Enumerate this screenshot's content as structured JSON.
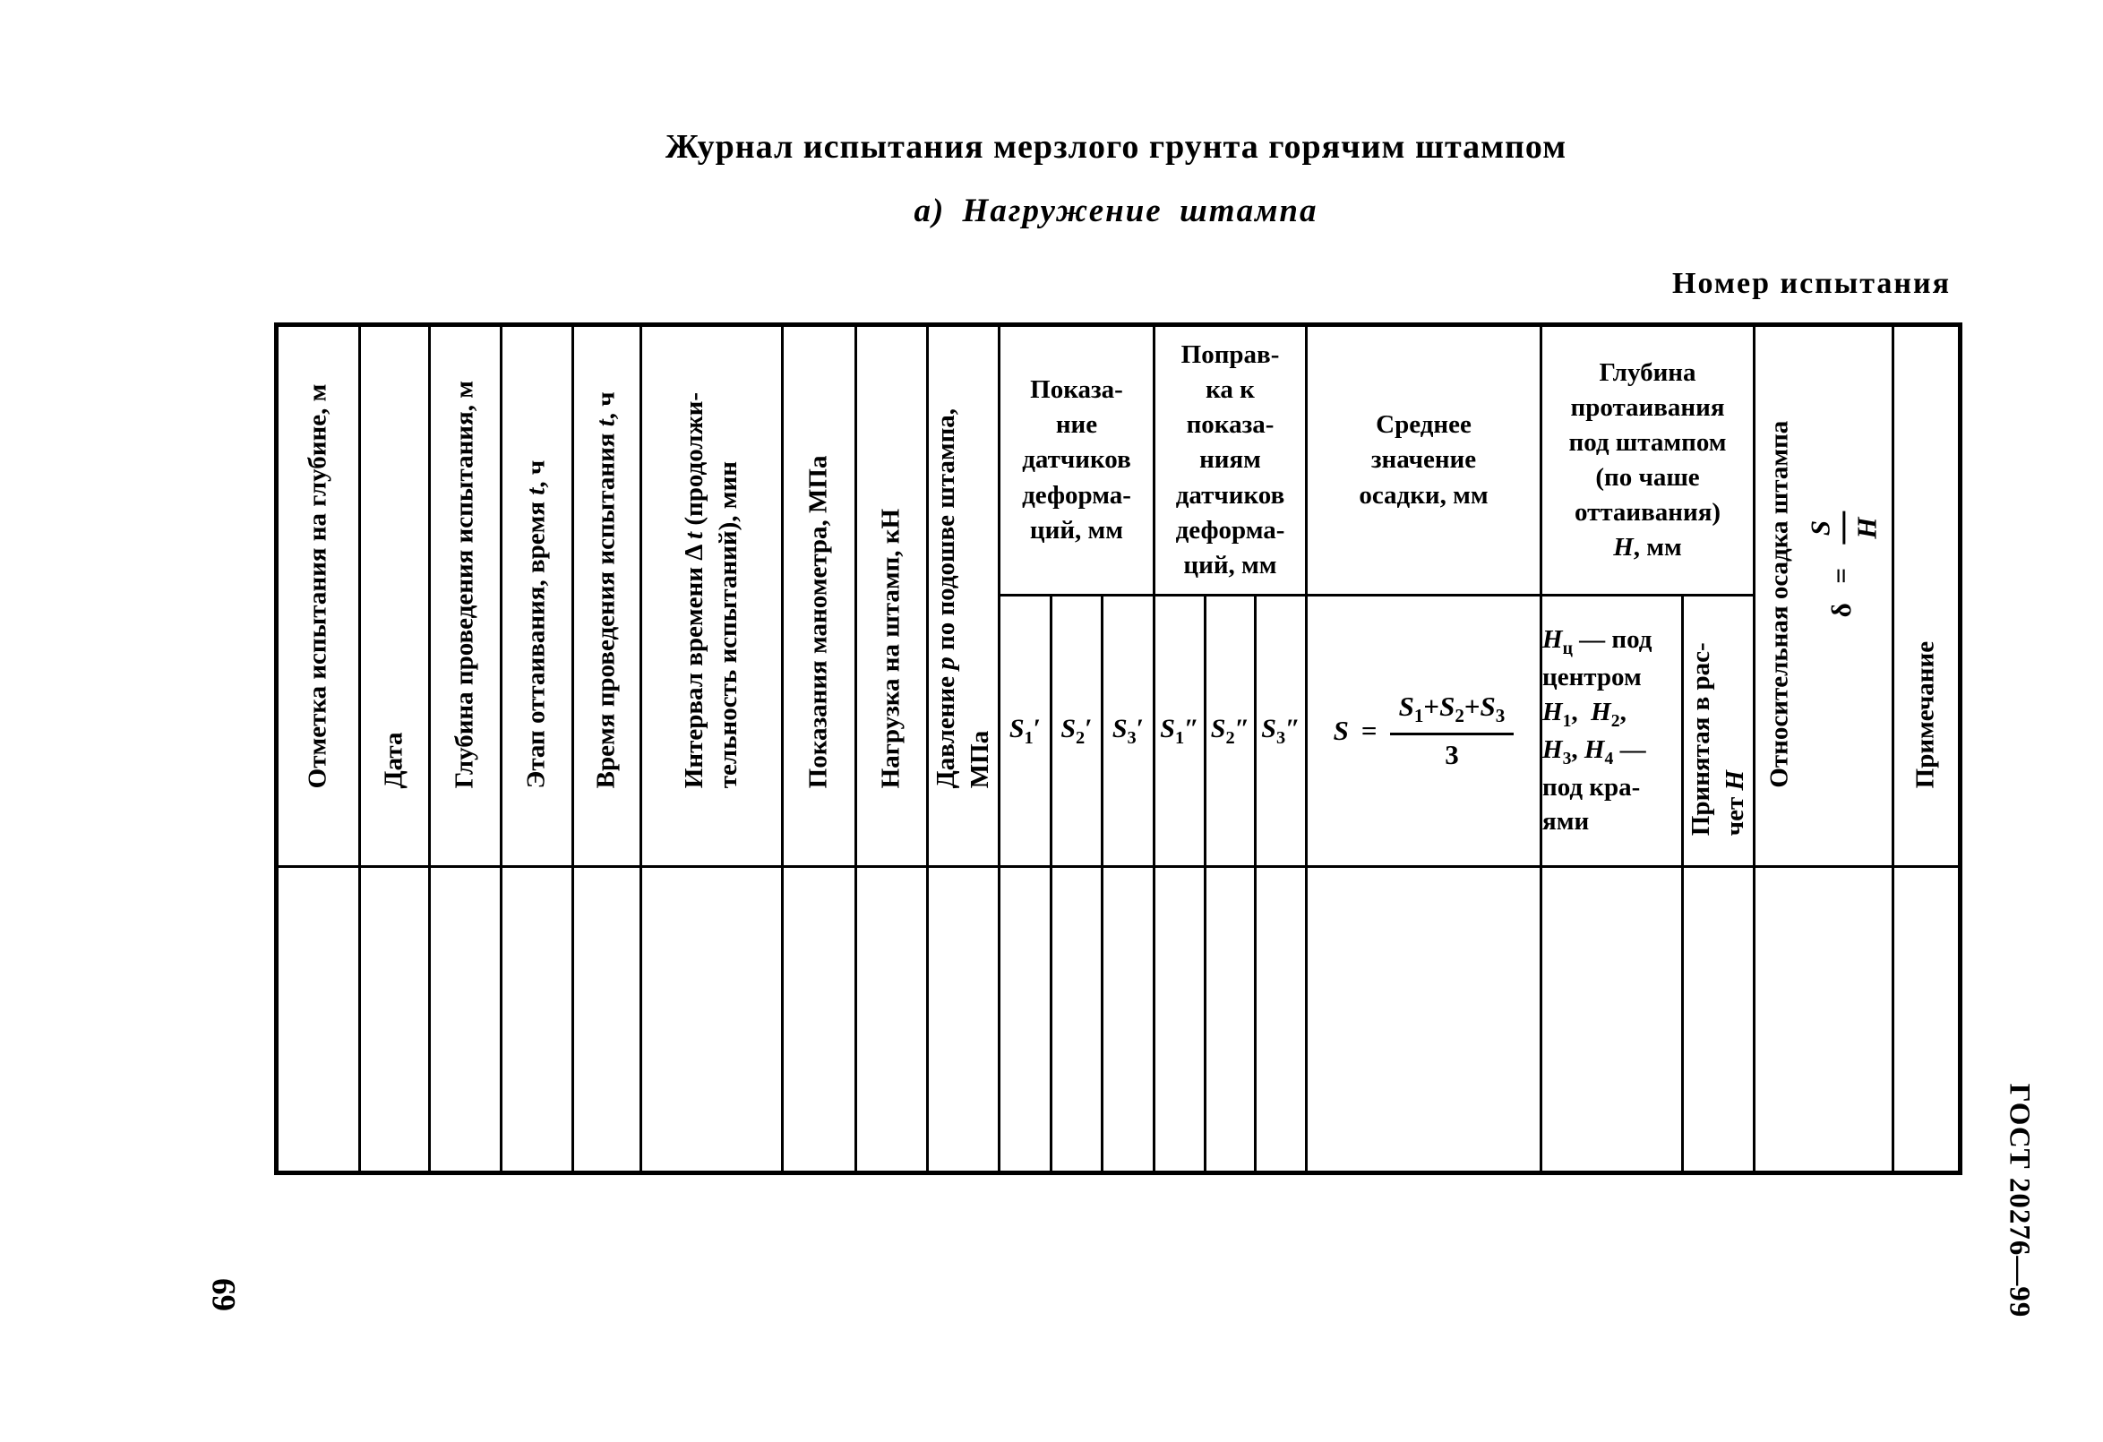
{
  "page": {
    "title": "Журнал испытания мерзлого грунта горячим штампом",
    "subtitle": "а) Нагружение штампа",
    "test_number_label": "Номер испытания",
    "page_number": "69",
    "standard_ref": "ГОСТ 20276—99"
  },
  "table": {
    "columns": {
      "mark": "Отметка испытания на глубине, м",
      "date": "Дата",
      "depth": "Глубина проведения испытания, м",
      "thaw_stage_html": "Этап оттаивания, время <i>t</i>, ч",
      "test_time_html": "Время проведения испытания <i>t</i>, ч",
      "interval_html": "Интервал времени Δ <i>t</i> (продолжи-<br>тельность испытаний), мин",
      "gauge": "Показания манометра, МПа",
      "load": "Нагрузка на штамп, кН",
      "pressure_html": "Давление <i>p</i> по подошве штампа,<br>МПа",
      "sensors_html": "Показа-<br>ние<br>датчиков<br>деформа-<br>ций, мм",
      "correction_html": "Поправ-<br>ка к<br>показа-<br>ниям<br>датчиков<br>деформа-<br>ций, мм",
      "mean_html": "Среднее<br>значение<br>осадки, мм",
      "thaw_depth_html": "Глубина<br>протаивания<br>под штампом<br>(по чаше<br>оттаивания)<br><i>H</i>, мм",
      "relative_settlement": "Относительная осадка штампа",
      "accepted_html": "Принятая в рас-<br>чет <i>H</i>",
      "note": "Примечание"
    },
    "subheaders": {
      "s_labels_html": [
        "<i>S</i><sub>1</sub>′",
        "<i>S</i><sub>2</sub>′",
        "<i>S</i><sub>3</sub>′",
        "<i>S</i><sub>1</sub>″",
        "<i>S</i><sub>2</sub>″",
        "<i>S</i><sub>3</sub>″"
      ],
      "mean_formula": {
        "lhs_html": "<i>S</i>",
        "equals": "=",
        "numerator_html": "<i>S</i><sub>1</sub>+<i>S</i><sub>2</sub>+<i>S</i><sub>3</sub>",
        "denominator": "3"
      },
      "thaw_points_html": "<i>H</i><sub>ц</sub> — под<br>центром<br><i>H</i><sub>1</sub>,&nbsp;&nbsp;<i>H</i><sub>2</sub>,<br><i>H</i><sub>3</sub>, <i>H</i><sub>4</sub> —<br>под кра-<br>ями",
      "relative_formula": {
        "lhs": "δ",
        "equals": "=",
        "numerator_html": "<i>S</i>",
        "denominator_html": "<i>H</i>"
      }
    }
  }
}
